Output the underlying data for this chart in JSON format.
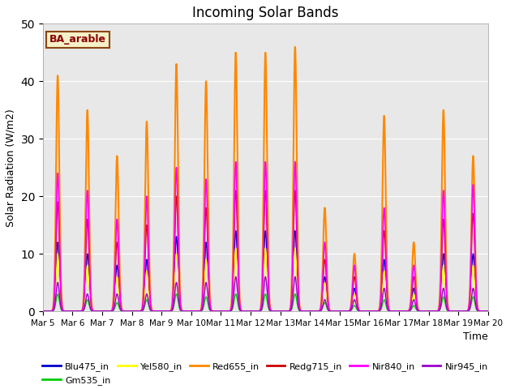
{
  "title": "Incoming Solar Bands",
  "xlabel": "Time",
  "ylabel": "Solar Radiation (W/m2)",
  "ylim": [
    0,
    50
  ],
  "plot_bg_color": "#e8e8e8",
  "annotation_text": "BA_arable",
  "annotation_color": "#8B0000",
  "annotation_bg": "#f5f0c8",
  "annotation_border": "#8B4513",
  "series_order": [
    "Blu475_in",
    "Gm535_in",
    "Yel580_in",
    "Red655_in",
    "Redg715_in",
    "Nir840_in",
    "Nir945_in"
  ],
  "series": {
    "Blu475_in": {
      "color": "#0000cc",
      "lw": 1.0
    },
    "Gm535_in": {
      "color": "#00cc00",
      "lw": 1.0
    },
    "Yel580_in": {
      "color": "#ffff00",
      "lw": 1.0
    },
    "Red655_in": {
      "color": "#ff8800",
      "lw": 1.5
    },
    "Redg715_in": {
      "color": "#cc0000",
      "lw": 1.0
    },
    "Nir840_in": {
      "color": "#ff00ff",
      "lw": 1.2
    },
    "Nir945_in": {
      "color": "#9900cc",
      "lw": 1.0
    }
  },
  "legend_order": [
    "Blu475_in",
    "Gm535_in",
    "Yel580_in",
    "Red655_in",
    "Redg715_in",
    "Nir840_in",
    "Nir945_in"
  ],
  "xtick_labels": [
    "Mar 5",
    "Mar 6",
    "Mar 7",
    "Mar 8",
    "Mar 9",
    "Mar 10",
    "Mar 11",
    "Mar 12",
    "Mar 13",
    "Mar 14",
    "Mar 15",
    "Mar 16",
    "Mar 17",
    "Mar 18",
    "Mar 19",
    "Mar 20"
  ],
  "grid_color": "#ffffff",
  "grid_lw": 0.8,
  "orange_peaks": [
    41,
    35,
    27,
    33,
    43,
    40,
    45,
    45,
    46,
    18,
    10,
    34,
    12,
    35,
    27
  ],
  "magenta_peaks": [
    24,
    21,
    16,
    20,
    25,
    23,
    26,
    26,
    26,
    12,
    8,
    18,
    8,
    21,
    22
  ],
  "red_peaks": [
    19,
    16,
    12,
    15,
    20,
    18,
    21,
    21,
    21,
    9,
    6,
    14,
    6,
    16,
    17
  ],
  "blue_peaks": [
    12,
    10,
    8,
    9,
    13,
    12,
    14,
    14,
    14,
    6,
    4,
    9,
    4,
    10,
    10
  ],
  "yel_peaks": [
    10,
    8,
    6,
    7,
    10,
    9,
    11,
    11,
    11,
    5,
    3,
    7,
    3,
    8,
    8
  ],
  "grn_peaks": [
    3,
    2,
    1.5,
    2,
    3,
    2.5,
    3,
    3,
    3,
    1.5,
    1,
    2,
    1,
    2.5,
    2.5
  ],
  "pur_peaks": [
    5,
    3,
    3,
    3,
    5,
    5,
    6,
    6,
    6,
    2,
    2,
    4,
    2,
    4,
    4
  ]
}
